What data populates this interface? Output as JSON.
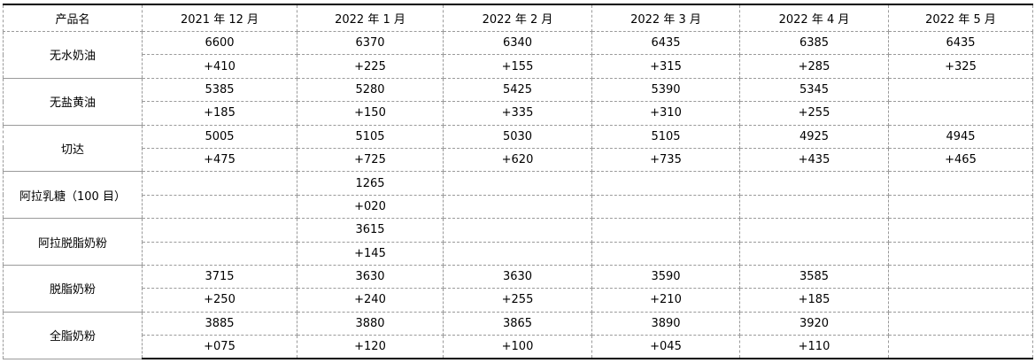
{
  "table": {
    "header": [
      "产品名",
      "2021 年 12 月",
      "2022 年 1 月",
      "2022 年 2 月",
      "2022 年 3 月",
      "2022 年 4 月",
      "2022 年 5 月"
    ],
    "rows": [
      {
        "name": "无水奶油",
        "prices": [
          "6600",
          "6370",
          "6340",
          "6435",
          "6385",
          "6435"
        ],
        "changes": [
          "+410",
          "+225",
          "+155",
          "+315",
          "+285",
          "+325"
        ]
      },
      {
        "name": "无盐黄油",
        "prices": [
          "5385",
          "5280",
          "5425",
          "5390",
          "5345",
          null
        ],
        "changes": [
          "+185",
          "+150",
          "+335",
          "+310",
          "+255",
          null
        ]
      },
      {
        "name": "切达",
        "prices": [
          "5005",
          "5105",
          "5030",
          "5105",
          "4925",
          "4945"
        ],
        "changes": [
          "+475",
          "+725",
          "+620",
          "+735",
          "+435",
          "+465"
        ]
      },
      {
        "name": "阿拉乳糖（100 目）",
        "prices": [
          null,
          "1265",
          null,
          null,
          null,
          null
        ],
        "changes": [
          null,
          "+020",
          null,
          null,
          null,
          null
        ]
      },
      {
        "name": "阿拉脱脂奶粉",
        "prices": [
          null,
          "3615",
          null,
          null,
          null,
          null
        ],
        "changes": [
          null,
          "+145",
          null,
          null,
          null,
          null
        ]
      },
      {
        "name": "脱脂奶粉",
        "prices": [
          "3715",
          "3630",
          "3630",
          "3590",
          "3585",
          null
        ],
        "changes": [
          "+250",
          "+240",
          "+255",
          "+210",
          "+185",
          null
        ]
      },
      {
        "name": "全脂奶粉",
        "prices": [
          "3885",
          "3880",
          "3865",
          "3890",
          "3920",
          null
        ],
        "changes": [
          "+075",
          "+120",
          "+100",
          "+045",
          "+110",
          null
        ]
      }
    ]
  }
}
